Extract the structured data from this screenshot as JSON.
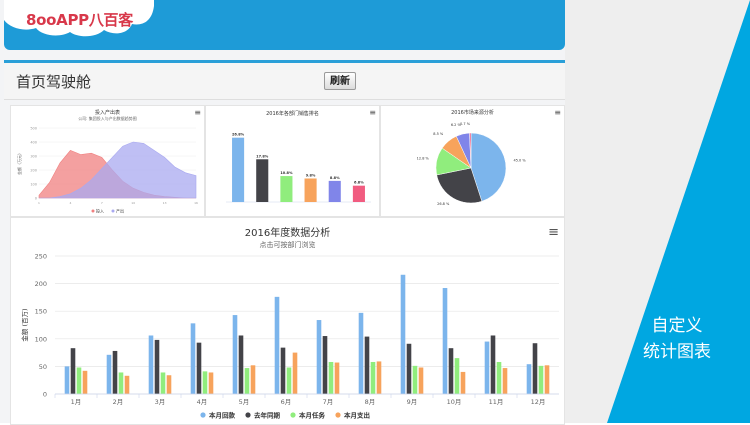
{
  "header": {
    "logo_text": "8ooAPP八百客"
  },
  "page": {
    "title": "首页驾驶舱",
    "refresh_label": "刷新"
  },
  "promo": {
    "line1": "自定义",
    "line2": "统计图表"
  },
  "colors": {
    "brand_blue": "#1e9bd7",
    "accent_cyan": "#00a7e1"
  },
  "icons": {
    "menu": "menu-icon"
  },
  "chart_data": [
    {
      "id": "input-output",
      "type": "area",
      "title": "投入产出表",
      "subtitle": "公司: 集团投入与产出数据趋势图",
      "ylabel": "金额（万元）",
      "x": [
        1,
        2,
        3,
        4,
        5,
        6,
        7,
        8,
        9,
        10,
        11,
        12,
        13,
        14,
        15,
        16
      ],
      "ylim": [
        0,
        500
      ],
      "series": [
        {
          "name": "投入",
          "color": "#f08080",
          "values": [
            20,
            110,
            250,
            340,
            310,
            320,
            290,
            200,
            120,
            70,
            40,
            20,
            10,
            5,
            0,
            0
          ]
        },
        {
          "name": "产出",
          "color": "#a9a9f0",
          "values": [
            0,
            0,
            10,
            30,
            70,
            130,
            210,
            290,
            370,
            400,
            390,
            340,
            290,
            220,
            180,
            160
          ]
        }
      ],
      "legend": "bottom"
    },
    {
      "id": "dept-sales",
      "type": "bar",
      "title": "2016年各部门销售排名",
      "subtitle": "",
      "ylabel": "",
      "categories": [
        "",
        "",
        "",
        "",
        "",
        ""
      ],
      "values": [
        26.8,
        17.8,
        10.8,
        9.8,
        8.8,
        6.8
      ],
      "value_labels": [
        "26.8%",
        "17.8%",
        "10.8%",
        "9.8%",
        "8.8%",
        "6.8%"
      ],
      "colors": [
        "#7cb5ec",
        "#434348",
        "#90ed7d",
        "#f7a35c",
        "#8085e9",
        "#f15c80"
      ],
      "ylim": [
        0,
        30
      ]
    },
    {
      "id": "market-source",
      "type": "pie",
      "title": "2016市场来源分析",
      "slices": [
        {
          "label": "",
          "value": 45.0,
          "color": "#7cb5ec"
        },
        {
          "label": "",
          "value": 26.8,
          "color": "#434348"
        },
        {
          "label": "",
          "value": 12.8,
          "color": "#90ed7d"
        },
        {
          "label": "",
          "value": 8.5,
          "color": "#f7a35c"
        },
        {
          "label": "",
          "value": 6.2,
          "color": "#8085e9"
        },
        {
          "label": "",
          "value": 0.7,
          "color": "#f15c80"
        }
      ],
      "slice_labels": [
        "45.0 %",
        "26.8 %",
        "12.8 %",
        "8.5 %",
        "6.2 %",
        "0.7 %"
      ]
    },
    {
      "id": "annual-analysis",
      "type": "bar",
      "title": "2016年度数据分析",
      "subtitle": "点击可按部门浏览",
      "ylabel": "金额 (百万)",
      "categories": [
        "1月",
        "2月",
        "3月",
        "4月",
        "5月",
        "6月",
        "7月",
        "8月",
        "9月",
        "10月",
        "11月",
        "12月"
      ],
      "ylim": [
        0,
        250
      ],
      "yticks": [
        0,
        50,
        100,
        150,
        200,
        250
      ],
      "series": [
        {
          "name": "本月回款",
          "color": "#7cb5ec",
          "values": [
            50,
            71,
            106,
            128,
            143,
            176,
            134,
            147,
            216,
            192,
            95,
            54
          ]
        },
        {
          "name": "去年同期",
          "color": "#434348",
          "values": [
            83,
            78,
            98,
            93,
            106,
            84,
            105,
            104,
            91,
            83,
            106,
            92
          ]
        },
        {
          "name": "本月任务",
          "color": "#90ed7d",
          "values": [
            48,
            39,
            39,
            41,
            47,
            48,
            58,
            58,
            51,
            65,
            58,
            51
          ]
        },
        {
          "name": "本月支出",
          "color": "#f7a35c",
          "values": [
            42,
            33,
            34,
            39,
            52,
            75,
            57,
            59,
            48,
            40,
            47,
            52
          ]
        }
      ],
      "legend": "bottom"
    }
  ]
}
